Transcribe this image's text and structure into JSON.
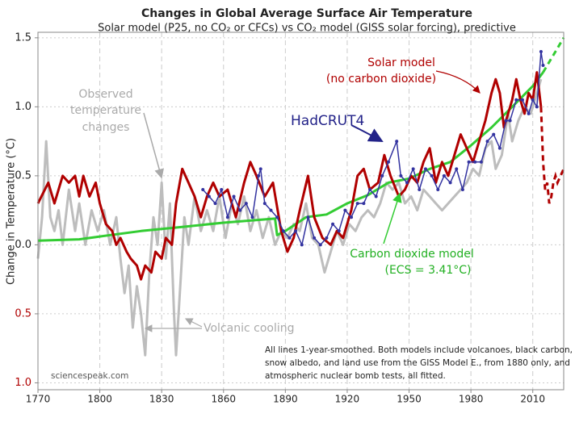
{
  "chart_data": {
    "type": "line",
    "title": "Changes in Global Average Surface Air Temperature",
    "subtitle": "Solar model (P25, no CO₂ or CFCs) vs CO₂ model (GISS solar forcing), predictive",
    "ylabel": "Change in Temperature (°C)",
    "xlim": [
      1770,
      2025
    ],
    "ylim": [
      -1.05,
      1.54
    ],
    "xticks": [
      1770,
      1800,
      1830,
      1860,
      1890,
      1920,
      1950,
      1980,
      2010
    ],
    "yticks": [
      {
        "value": -1,
        "label": "1.0"
      },
      {
        "value": -0.5,
        "label": "0.5"
      },
      {
        "value": 0,
        "label": "0.0"
      },
      0.5,
      {
        "value": 1,
        "label": "1.0"
      },
      1.5
    ],
    "grid": true,
    "series": [
      {
        "color": "#bdbdbd",
        "width": 3,
        "x": [
          1770,
          1772,
          1774,
          1776,
          1778,
          1780,
          1782,
          1785,
          1788,
          1790,
          1793,
          1796,
          1799,
          1802,
          1805,
          1808,
          1810,
          1812,
          1814,
          1816,
          1818,
          1820,
          1822,
          1824,
          1826,
          1828,
          1830,
          1832,
          1834,
          1836,
          1837,
          1839,
          1841,
          1843,
          1846,
          1849,
          1852,
          1855,
          1858,
          1861,
          1864,
          1867,
          1870,
          1873,
          1876,
          1879,
          1882,
          1885,
          1888,
          1891,
          1894,
          1897,
          1900,
          1903,
          1906,
          1909,
          1912,
          1915,
          1918,
          1921,
          1924,
          1927,
          1930,
          1933,
          1936,
          1939,
          1942,
          1945,
          1948,
          1951,
          1954,
          1957,
          1960,
          1963,
          1966,
          1969,
          1972,
          1975,
          1978,
          1981,
          1984,
          1987,
          1990,
          1992,
          1995,
          1998,
          2000,
          2003,
          2006,
          2009,
          2012,
          2014
        ],
        "values": [
          -0.1,
          0.2,
          0.75,
          0.2,
          0.1,
          0.25,
          0.0,
          0.4,
          0.1,
          0.3,
          0.0,
          0.25,
          0.1,
          0.25,
          0.0,
          0.2,
          -0.1,
          -0.35,
          -0.15,
          -0.6,
          -0.3,
          -0.5,
          -0.8,
          -0.2,
          0.2,
          0.0,
          0.45,
          -0.1,
          0.3,
          -0.5,
          -0.8,
          -0.3,
          0.2,
          0.0,
          0.35,
          0.1,
          0.25,
          0.1,
          0.35,
          0.05,
          0.3,
          0.15,
          0.35,
          0.1,
          0.25,
          0.05,
          0.2,
          0.0,
          0.1,
          0.05,
          0.15,
          0.1,
          0.3,
          0.05,
          0.0,
          -0.2,
          -0.05,
          0.1,
          0.0,
          0.15,
          0.1,
          0.2,
          0.25,
          0.2,
          0.3,
          0.45,
          0.4,
          0.45,
          0.3,
          0.35,
          0.25,
          0.4,
          0.35,
          0.3,
          0.25,
          0.3,
          0.35,
          0.4,
          0.45,
          0.55,
          0.5,
          0.7,
          0.75,
          0.55,
          0.65,
          0.95,
          0.75,
          0.9,
          1.0,
          0.95,
          1.1,
          1.2
        ]
      },
      {
        "color": "#33cc33",
        "width": 3,
        "x": [
          1770,
          1790,
          1800,
          1820,
          1840,
          1860,
          1885,
          1886,
          1890,
          1895,
          1900,
          1910,
          1920,
          1930,
          1940,
          1950,
          1960,
          1970,
          1980,
          1990,
          2000,
          2010,
          2015
        ],
        "values": [
          0.03,
          0.04,
          0.06,
          0.1,
          0.13,
          0.16,
          0.19,
          0.07,
          0.1,
          0.15,
          0.2,
          0.22,
          0.3,
          0.36,
          0.45,
          0.48,
          0.55,
          0.6,
          0.72,
          0.85,
          1.0,
          1.15,
          1.25
        ],
        "predicted": {
          "x": [
            2015,
            2025
          ],
          "values": [
            1.25,
            1.5
          ]
        }
      },
      {
        "color": "#b00000",
        "width": 3,
        "x": [
          1770,
          1775,
          1778,
          1782,
          1785,
          1788,
          1790,
          1792,
          1795,
          1798,
          1800,
          1803,
          1806,
          1808,
          1810,
          1813,
          1815,
          1818,
          1820,
          1822,
          1825,
          1827,
          1830,
          1832,
          1835,
          1837,
          1840,
          1843,
          1846,
          1849,
          1852,
          1855,
          1858,
          1862,
          1866,
          1870,
          1873,
          1876,
          1880,
          1884,
          1888,
          1891,
          1894,
          1897,
          1901,
          1904,
          1908,
          1912,
          1915,
          1918,
          1922,
          1925,
          1928,
          1931,
          1935,
          1938,
          1941,
          1945,
          1948,
          1951,
          1954,
          1957,
          1960,
          1963,
          1966,
          1969,
          1972,
          1975,
          1978,
          1981,
          1984,
          1987,
          1990,
          1992,
          1994,
          1996,
          1998,
          2000,
          2002,
          2004,
          2006,
          2008,
          2010,
          2012,
          2014
        ],
        "values": [
          0.3,
          0.45,
          0.3,
          0.5,
          0.45,
          0.5,
          0.35,
          0.5,
          0.35,
          0.45,
          0.3,
          0.15,
          0.1,
          0.0,
          0.05,
          -0.05,
          -0.1,
          -0.15,
          -0.25,
          -0.15,
          -0.2,
          -0.05,
          -0.1,
          0.05,
          0.0,
          0.3,
          0.55,
          0.45,
          0.35,
          0.2,
          0.35,
          0.45,
          0.35,
          0.4,
          0.2,
          0.45,
          0.6,
          0.5,
          0.35,
          0.45,
          0.1,
          -0.05,
          0.05,
          0.25,
          0.5,
          0.2,
          0.05,
          0.0,
          0.1,
          0.05,
          0.25,
          0.5,
          0.55,
          0.4,
          0.45,
          0.65,
          0.5,
          0.35,
          0.4,
          0.5,
          0.45,
          0.6,
          0.7,
          0.45,
          0.6,
          0.5,
          0.65,
          0.8,
          0.7,
          0.6,
          0.75,
          0.9,
          1.1,
          1.2,
          1.1,
          0.85,
          0.95,
          1.05,
          1.2,
          1.05,
          0.95,
          1.1,
          1.05,
          1.25,
          1.0
        ],
        "predicted": {
          "x": [
            2014,
            2015,
            2016,
            2017,
            2018,
            2019,
            2020,
            2021,
            2022,
            2025
          ],
          "values": [
            1.0,
            0.6,
            0.4,
            0.45,
            0.3,
            0.35,
            0.45,
            0.5,
            0.45,
            0.55
          ]
        }
      },
      {
        "color": "#3333a0",
        "width": 1.5,
        "markers": true,
        "x": [
          1850,
          1853,
          1856,
          1859,
          1862,
          1865,
          1868,
          1871,
          1874,
          1877,
          1878,
          1880,
          1883,
          1886,
          1889,
          1892,
          1895,
          1898,
          1901,
          1904,
          1907,
          1910,
          1913,
          1916,
          1919,
          1922,
          1925,
          1928,
          1931,
          1934,
          1937,
          1940,
          1944,
          1946,
          1949,
          1952,
          1955,
          1958,
          1961,
          1964,
          1967,
          1970,
          1973,
          1976,
          1979,
          1982,
          1985,
          1988,
          1991,
          1994,
          1997,
          1999,
          2002,
          2005,
          2008,
          2010,
          2012,
          2014,
          2015
        ],
        "values": [
          0.4,
          0.35,
          0.3,
          0.4,
          0.2,
          0.35,
          0.25,
          0.3,
          0.2,
          0.5,
          0.55,
          0.3,
          0.25,
          0.2,
          0.1,
          0.05,
          0.1,
          0.0,
          0.2,
          0.05,
          0.0,
          0.05,
          0.15,
          0.1,
          0.25,
          0.2,
          0.3,
          0.3,
          0.4,
          0.35,
          0.5,
          0.6,
          0.75,
          0.5,
          0.45,
          0.55,
          0.4,
          0.55,
          0.5,
          0.4,
          0.5,
          0.45,
          0.55,
          0.4,
          0.6,
          0.6,
          0.6,
          0.75,
          0.8,
          0.7,
          0.9,
          0.9,
          1.05,
          1.05,
          0.95,
          1.05,
          1.0,
          1.4,
          1.3
        ]
      }
    ],
    "annotations": {
      "observed": [
        "Observed",
        "temperature",
        "changes"
      ],
      "hadcrut": "HadCRUT4",
      "solar": [
        "Solar model",
        "(no carbon dioxide)"
      ],
      "co2": [
        "Carbon dioxide model",
        "(ECS = 3.41°C)"
      ],
      "volcanic": "Volcanic cooling",
      "note": [
        "All lines 1-year-smoothed. Both models include volcanoes, black carbon,",
        "snow albedo, and land use from the GISS Model E., from 1880 only, and",
        "atmospheric nuclear bomb tests, all fitted."
      ],
      "credit": "sciencespeak.com"
    }
  }
}
